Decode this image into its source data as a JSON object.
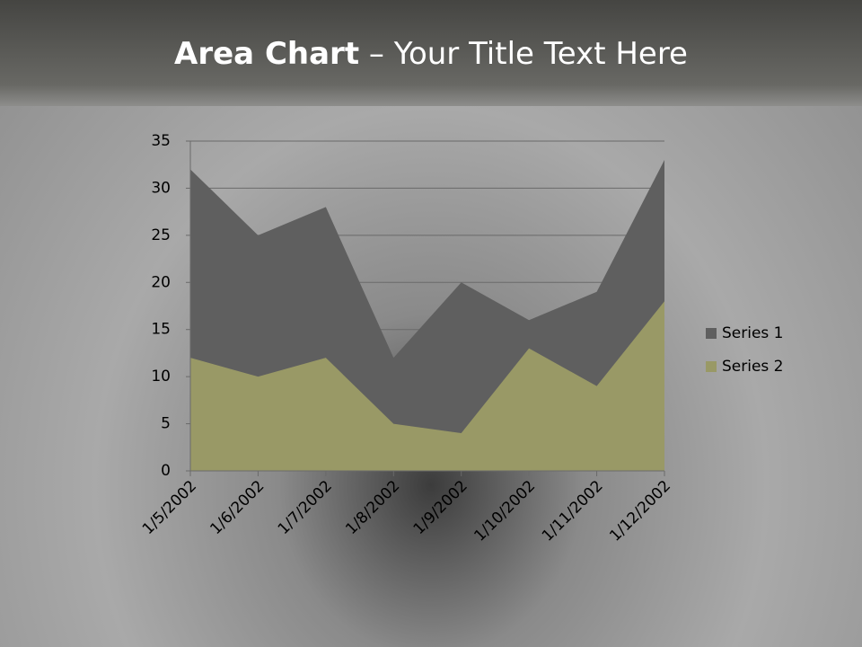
{
  "chart_data": {
    "type": "area",
    "title_bold": "Area Chart",
    "title_rest": "– Your Title Text Here",
    "categories": [
      "1/5/2002",
      "1/6/2002",
      "1/7/2002",
      "1/8/2002",
      "1/9/2002",
      "1/10/2002",
      "1/11/2002",
      "1/12/2002"
    ],
    "series": [
      {
        "name": "Series 1",
        "color": "#5f5f5f",
        "values": [
          32,
          25,
          28,
          12,
          20,
          16,
          19,
          33
        ]
      },
      {
        "name": "Series 2",
        "color": "#999966",
        "values": [
          12,
          10,
          12,
          5,
          4,
          13,
          9,
          18
        ]
      }
    ],
    "ylim": [
      0,
      35
    ],
    "yticks": [
      0,
      5,
      10,
      15,
      20,
      25,
      30,
      35
    ],
    "grid": true,
    "legend": "right"
  }
}
